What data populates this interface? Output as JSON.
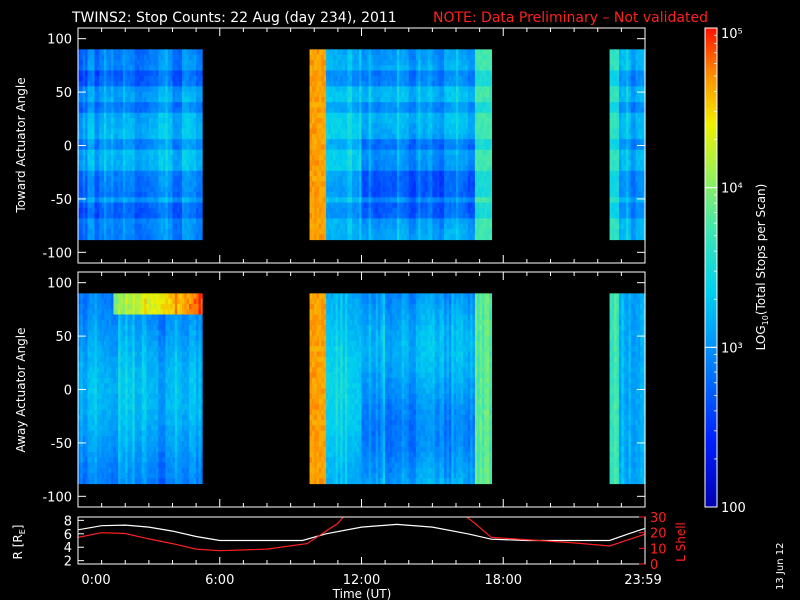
{
  "title": "TWINS2: Stop Counts: 22 Aug (day 234), 2011",
  "note": "NOTE: Data Preliminary – Not validated",
  "date_stamp": "13 Jun 12",
  "colors": {
    "note": "#ff2020",
    "ephem_R": "#ffffff",
    "ephem_L": "#ff2020",
    "frame": "#ffffff",
    "background": "#000000"
  },
  "colorbar": {
    "label": "LOG10(Total Stops per Scan)",
    "label_main": "LOG",
    "label_sub": "10",
    "label_rest": "(Total Stops per Scan)",
    "scale": "log",
    "range": [
      100,
      100000
    ],
    "tick_labels": [
      "100",
      "10³",
      "10⁴",
      "10⁵"
    ],
    "tick_values": [
      100,
      1000,
      10000,
      100000
    ]
  },
  "chart_data": [
    {
      "type": "heatmap",
      "ylabel": "Toward Actuator Angle",
      "ylim": [
        -110,
        110
      ],
      "yticks": [
        100,
        50,
        0,
        -50,
        -100
      ],
      "xlim_hours": [
        0,
        24
      ],
      "data_angle_range": [
        -88,
        90
      ],
      "data_intervals_hours": [
        [
          0,
          5.25
        ],
        [
          9.75,
          17.5
        ],
        [
          22.5,
          24
        ]
      ],
      "orange_band_hours": [
        9.8,
        10.45
      ],
      "low_count_bands_deg": [
        62,
        35,
        1,
        -28,
        -42,
        -60
      ]
    },
    {
      "type": "heatmap",
      "ylabel": "Away Actuator Angle",
      "ylim": [
        -110,
        110
      ],
      "yticks": [
        100,
        50,
        0,
        -50,
        -100
      ],
      "xlim_hours": [
        0,
        24
      ],
      "data_angle_range": [
        -88,
        90
      ],
      "data_intervals_hours": [
        [
          0,
          5.25
        ],
        [
          9.75,
          17.5
        ],
        [
          22.5,
          24
        ]
      ],
      "orange_band_hours": [
        9.8,
        10.45
      ],
      "hot_feature": {
        "angle_deg": 82,
        "hours": [
          1.5,
          5.25
        ]
      }
    },
    {
      "type": "line",
      "ylabel": "R [RE]",
      "ylabel_main": "R [R",
      "ylabel_sub": "E",
      "ylabel_end": "]",
      "ylim": [
        1.5,
        8.5
      ],
      "yticks": [
        8,
        6,
        4,
        2
      ],
      "y2label": "L Shell",
      "y2lim": [
        0,
        30
      ],
      "y2ticks": [
        30,
        20,
        10,
        0
      ],
      "xlabel": "Time (UT)",
      "xticks": [
        "0:00",
        "6:00",
        "12:00",
        "18:00",
        "23:59"
      ],
      "xtick_hours": [
        0,
        6,
        12,
        18,
        24
      ],
      "series": [
        {
          "name": "R",
          "x": [
            0,
            1,
            2,
            3,
            4,
            5,
            6,
            8,
            9.5,
            10.5,
            12,
            13.5,
            15,
            16.5,
            17.5,
            19,
            21,
            22.5,
            23.3,
            24
          ],
          "y": [
            6.6,
            7.2,
            7.3,
            7.0,
            6.4,
            5.6,
            5.0,
            5.0,
            5.0,
            6.0,
            7.0,
            7.4,
            7.0,
            6.0,
            5.2,
            5.0,
            5.0,
            5.0,
            6.0,
            6.8
          ]
        },
        {
          "name": "L Shell",
          "x": [
            0,
            1,
            2,
            3,
            4,
            5,
            6,
            8,
            9.7,
            11.0,
            11.4,
            16.2,
            16.8,
            17.5,
            19,
            21,
            22.5,
            23.3,
            24
          ],
          "y": [
            17,
            20,
            19.5,
            16,
            13,
            9.5,
            8.5,
            9.5,
            13,
            26,
            33,
            33,
            26,
            17,
            15.5,
            13.5,
            11.5,
            15.5,
            19
          ]
        }
      ]
    }
  ]
}
